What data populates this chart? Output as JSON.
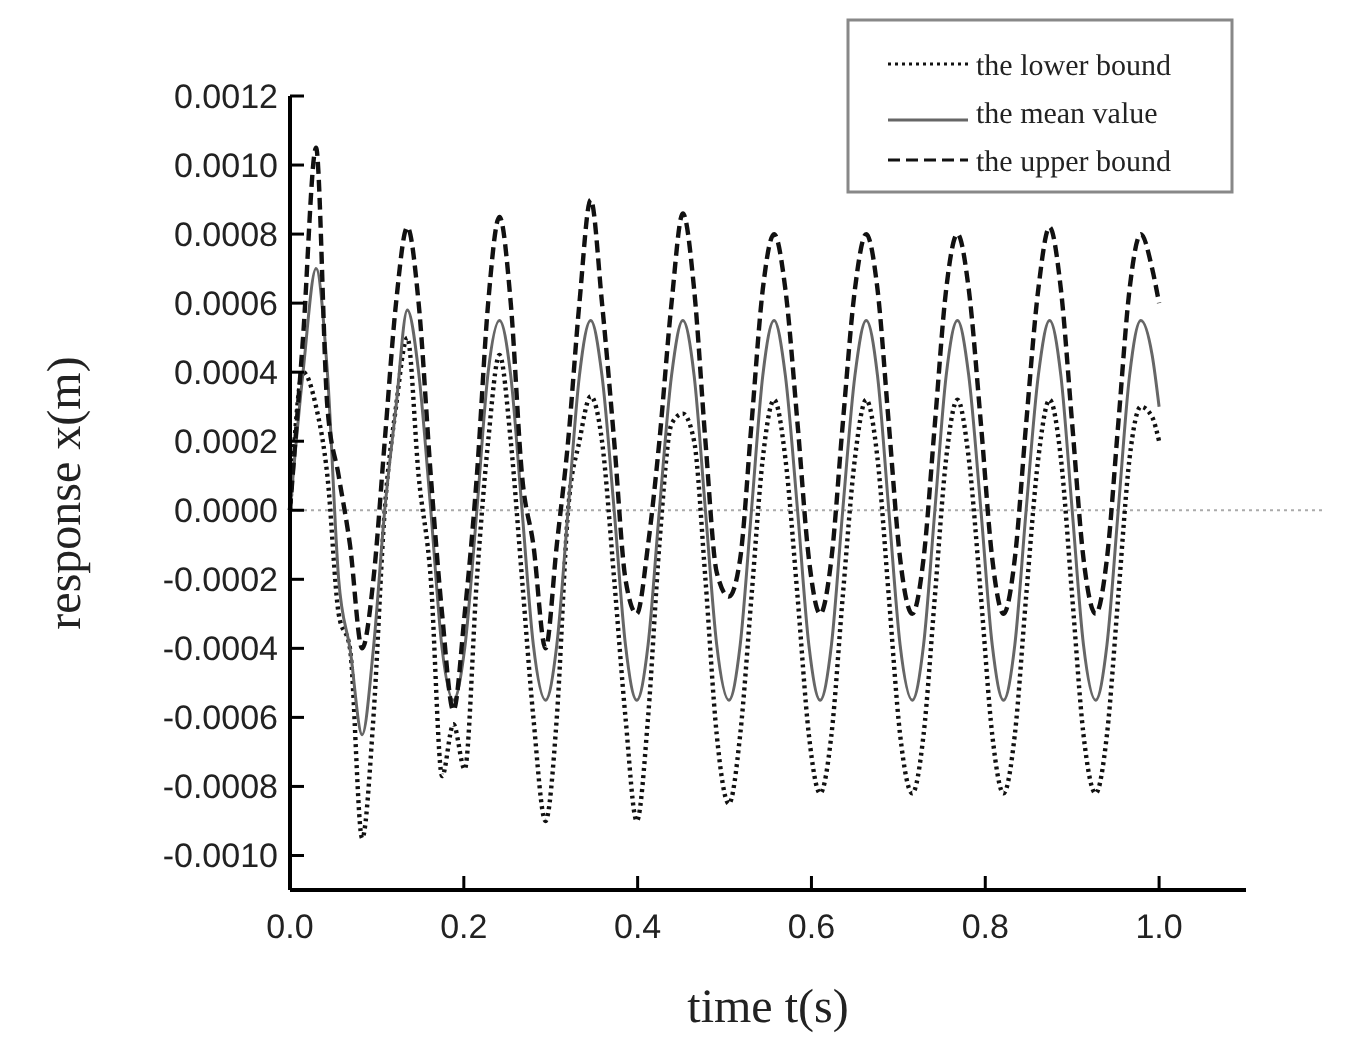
{
  "chart_data": {
    "type": "line",
    "xlabel": "time t(s)",
    "ylabel": "response x(m)",
    "xlim": [
      0,
      1.1
    ],
    "ylim": [
      -0.0011,
      0.0012
    ],
    "xticks": [
      {
        "value": 0,
        "label": "0.0"
      },
      {
        "value": 0.2,
        "label": "0.2"
      },
      {
        "value": 0.4,
        "label": "0.4"
      },
      {
        "value": 0.6,
        "label": "0.6"
      },
      {
        "value": 0.8,
        "label": "0.8"
      },
      {
        "value": 1,
        "label": "1.0"
      }
    ],
    "yticks": [
      {
        "value": -0.001,
        "label": "-0.0010"
      },
      {
        "value": -0.0008,
        "label": "-0.0008"
      },
      {
        "value": -0.0006,
        "label": "-0.0006"
      },
      {
        "value": -0.0004,
        "label": "-0.0004"
      },
      {
        "value": -0.0002,
        "label": "-0.0002"
      },
      {
        "value": 0,
        "label": "0.0000"
      },
      {
        "value": 0.0002,
        "label": "0.0002"
      },
      {
        "value": 0.0004,
        "label": "0.0004"
      },
      {
        "value": 0.0006,
        "label": "0.0006"
      },
      {
        "value": 0.0008,
        "label": "0.0008"
      },
      {
        "value": 0.001,
        "label": "0.0010"
      },
      {
        "value": 0.0012,
        "label": "0.0012"
      }
    ],
    "grid": false,
    "legend": "top right",
    "ref_lines": [
      {
        "axis": "y",
        "value": 0,
        "color": "#aaaaaa",
        "line_style": "dotted"
      }
    ],
    "x": [
      0,
      0.015,
      0.03,
      0.043,
      0.056,
      0.069,
      0.083,
      0.096,
      0.109,
      0.122,
      0.135,
      0.148,
      0.162,
      0.175,
      0.188,
      0.201,
      0.215,
      0.228,
      0.241,
      0.254,
      0.267,
      0.28,
      0.294,
      0.307,
      0.32,
      0.333,
      0.346,
      0.359,
      0.373,
      0.386,
      0.399,
      0.412,
      0.425,
      0.439,
      0.452,
      0.465,
      0.478,
      0.491,
      0.505,
      0.518,
      0.531,
      0.544,
      0.557,
      0.57,
      0.584,
      0.597,
      0.61,
      0.623,
      0.636,
      0.65,
      0.663,
      0.676,
      0.689,
      0.702,
      0.716,
      0.729,
      0.742,
      0.755,
      0.768,
      0.781,
      0.795,
      0.808,
      0.821,
      0.834,
      0.847,
      0.861,
      0.874,
      0.887,
      0.9,
      0.913,
      0.927,
      0.94,
      0.953,
      0.966,
      0.979,
      0.992,
      1.0
    ],
    "series": [
      {
        "name": "the lower bound",
        "color": "#111111",
        "line_style": "dotted",
        "values": [
          0,
          0.0004,
          0.0003,
          0.0001,
          -0.0003,
          -0.0004,
          -0.00095,
          -0.0006,
          0,
          0.0003,
          0.0005,
          0.0001,
          -0.0002,
          -0.00077,
          -0.00062,
          -0.00075,
          -0.0002,
          0.0002,
          0.00045,
          0.0002,
          -0.0002,
          -0.0006,
          -0.0009,
          -0.0006,
          0,
          0.0002,
          0.00033,
          0.0002,
          -0.0002,
          -0.0006,
          -0.0009,
          -0.0006,
          -0.0001,
          0.00025,
          0.00028,
          0.0002,
          -0.0002,
          -0.00065,
          -0.00085,
          -0.00065,
          -0.00025,
          0.00015,
          0.00032,
          0.00015,
          -0.00025,
          -0.00065,
          -0.00082,
          -0.00065,
          -0.00025,
          0.00015,
          0.00032,
          0.00015,
          -0.00025,
          -0.00065,
          -0.00082,
          -0.00065,
          -0.00025,
          0.00015,
          0.00032,
          0.00015,
          -0.00025,
          -0.00065,
          -0.00082,
          -0.00065,
          -0.00025,
          0.00015,
          0.00032,
          0.00015,
          -0.00025,
          -0.00065,
          -0.00082,
          -0.00065,
          -0.00025,
          0.00015,
          0.0003,
          0.00027,
          0.0002
        ]
      },
      {
        "name": "the mean value",
        "color": "#666666",
        "line_style": "solid",
        "values": [
          0,
          0.0004,
          0.0007,
          0.0004,
          -0.0002,
          -0.0004,
          -0.00065,
          -0.0004,
          0,
          0.0003,
          0.00058,
          0.0004,
          0,
          -0.0004,
          -0.00055,
          -0.0004,
          0,
          0.0004,
          0.00055,
          0.00039,
          0,
          -0.00039,
          -0.00055,
          -0.00039,
          0,
          0.00039,
          0.00055,
          0.00039,
          0,
          -0.00039,
          -0.00055,
          -0.00039,
          0,
          0.00039,
          0.00055,
          0.00039,
          0,
          -0.00039,
          -0.00055,
          -0.00039,
          0,
          0.00039,
          0.00055,
          0.00039,
          0,
          -0.00039,
          -0.00055,
          -0.00039,
          0,
          0.00039,
          0.00055,
          0.00039,
          0,
          -0.00039,
          -0.00055,
          -0.00039,
          0,
          0.00039,
          0.00055,
          0.00039,
          0,
          -0.00039,
          -0.00055,
          -0.00039,
          0,
          0.00039,
          0.00055,
          0.00039,
          0,
          -0.00039,
          -0.00055,
          -0.00039,
          0,
          0.00039,
          0.00055,
          0.00045,
          0.0003
        ]
      },
      {
        "name": "the upper bound",
        "color": "#111111",
        "line_style": "dashed",
        "values": [
          0,
          0.0005,
          0.00105,
          0.0003,
          0.0001,
          -0.0001,
          -0.0004,
          -0.0002,
          0.0002,
          0.0006,
          0.00082,
          0.0006,
          0.0001,
          -0.0003,
          -0.00058,
          -0.0003,
          0.0001,
          0.0006,
          0.00085,
          0.0006,
          0.0001,
          -0.0001,
          -0.0004,
          -0.0001,
          0.0002,
          0.0006,
          0.0009,
          0.0006,
          0.0002,
          -0.0002,
          -0.0003,
          -0.0001,
          0.0002,
          0.0006,
          0.00086,
          0.00064,
          0.0002,
          -0.00018,
          -0.00025,
          -0.00014,
          0.00025,
          0.00064,
          0.0008,
          0.00064,
          0.00025,
          -0.00014,
          -0.0003,
          -0.00014,
          0.00025,
          0.00064,
          0.0008,
          0.00064,
          0.00025,
          -0.00014,
          -0.0003,
          -0.00014,
          0.00025,
          0.00064,
          0.0008,
          0.00064,
          0.00025,
          -0.00014,
          -0.0003,
          -0.00014,
          0.00025,
          0.00064,
          0.00082,
          0.00064,
          0.00025,
          -0.00014,
          -0.0003,
          -0.00014,
          0.00025,
          0.00064,
          0.0008,
          0.0007,
          0.0006
        ]
      }
    ]
  }
}
